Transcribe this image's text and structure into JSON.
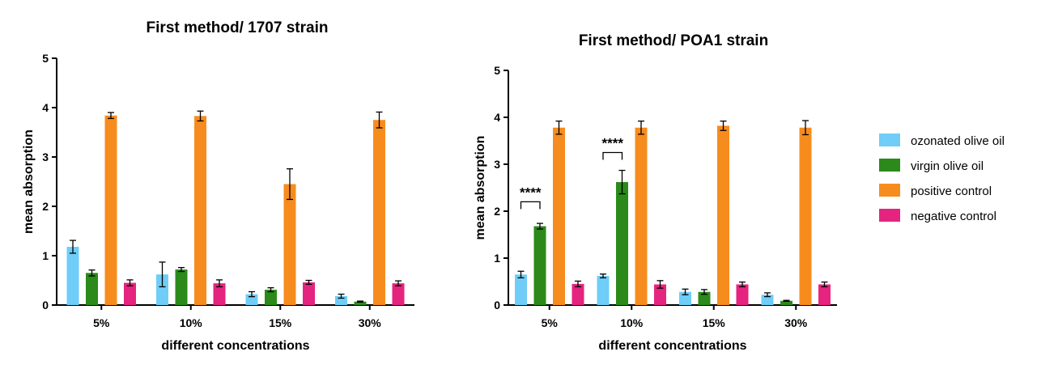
{
  "colors": {
    "ozonated olive oil": "#6fcdf7",
    "virgin olive oil": "#2b8a1a",
    "positive control": "#f78c1e",
    "negative control": "#e5247f"
  },
  "legend": {
    "items": [
      "ozonated olive oil",
      "virgin olive oil",
      "positive control",
      "negative control"
    ]
  },
  "chart_data": [
    {
      "type": "bar",
      "title": "First method/ 1707 strain",
      "xlabel": "different concentrations",
      "ylabel": "mean absorption",
      "ylim": [
        0,
        5
      ],
      "yticks": [
        "0",
        "1",
        "2",
        "3",
        "4",
        "5"
      ],
      "categories": [
        "5%",
        "10%",
        "15%",
        "30%"
      ],
      "series": [
        {
          "name": "ozonated olive oil",
          "values": [
            1.18,
            0.62,
            0.22,
            0.18
          ],
          "errors": [
            0.13,
            0.25,
            0.05,
            0.04
          ]
        },
        {
          "name": "virgin olive oil",
          "values": [
            0.65,
            0.72,
            0.31,
            0.07
          ],
          "errors": [
            0.06,
            0.04,
            0.04,
            0.01
          ]
        },
        {
          "name": "positive control",
          "values": [
            3.84,
            3.83,
            2.45,
            3.75
          ],
          "errors": [
            0.06,
            0.1,
            0.31,
            0.16
          ]
        },
        {
          "name": "negative control",
          "values": [
            0.45,
            0.44,
            0.46,
            0.44
          ],
          "errors": [
            0.06,
            0.07,
            0.04,
            0.05
          ]
        }
      ],
      "annotations": []
    },
    {
      "type": "bar",
      "title": "First method/ POA1 strain",
      "xlabel": "different concentrations",
      "ylabel": "mean absorption",
      "ylim": [
        0,
        5
      ],
      "yticks": [
        "0",
        "1",
        "2",
        "3",
        "4",
        "5"
      ],
      "categories": [
        "5%",
        "10%",
        "15%",
        "30%"
      ],
      "series": [
        {
          "name": "ozonated olive oil",
          "values": [
            0.65,
            0.62,
            0.28,
            0.22
          ],
          "errors": [
            0.07,
            0.04,
            0.06,
            0.04
          ]
        },
        {
          "name": "virgin olive oil",
          "values": [
            1.68,
            2.62,
            0.28,
            0.09
          ],
          "errors": [
            0.06,
            0.25,
            0.05,
            0.01
          ]
        },
        {
          "name": "positive control",
          "values": [
            3.78,
            3.78,
            3.82,
            3.78
          ],
          "errors": [
            0.14,
            0.14,
            0.1,
            0.15
          ]
        },
        {
          "name": "negative control",
          "values": [
            0.45,
            0.44,
            0.44,
            0.44
          ],
          "errors": [
            0.06,
            0.08,
            0.05,
            0.05
          ]
        }
      ],
      "annotations": [
        {
          "text": "****",
          "category": "5%",
          "from_series": "ozonated olive oil",
          "to_series": "virgin olive oil",
          "level": 2.2
        },
        {
          "text": "****",
          "category": "10%",
          "from_series": "ozonated olive oil",
          "to_series": "virgin olive oil",
          "level": 3.25
        }
      ]
    }
  ]
}
